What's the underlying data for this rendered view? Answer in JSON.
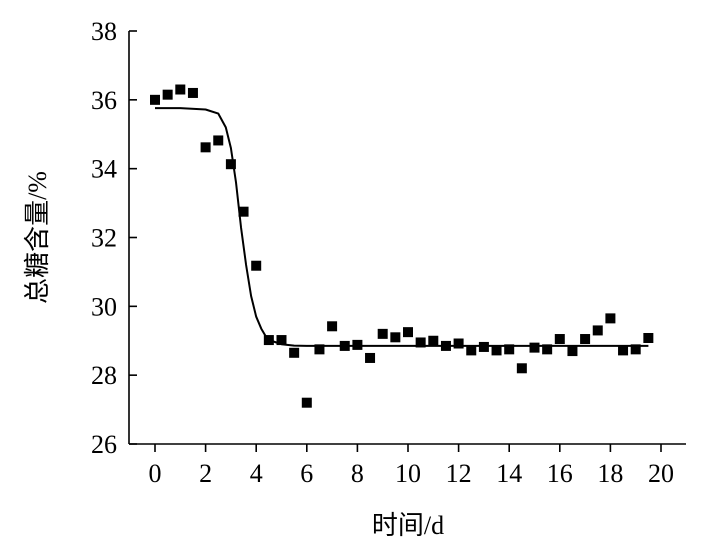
{
  "chart_data": {
    "type": "scatter",
    "xlabel": "时间/d",
    "ylabel": "总糖含量/%",
    "xlim": [
      -1,
      20
    ],
    "ylim": [
      26,
      38
    ],
    "xticks": [
      "0",
      "2",
      "4",
      "6",
      "8",
      "10",
      "12",
      "14",
      "16",
      "18",
      "20"
    ],
    "yticks": [
      "26",
      "28",
      "30",
      "32",
      "34",
      "36",
      "38"
    ],
    "grid": false,
    "series": [
      {
        "kind": "points",
        "marker": "square",
        "x": [
          0,
          0.5,
          1,
          1.5,
          2,
          2.5,
          3,
          3.5,
          4,
          4.5,
          5,
          5.5,
          6,
          6.5,
          7,
          7.5,
          8,
          8.5,
          9,
          9.5,
          10,
          10.5,
          11,
          11.5,
          12,
          12.5,
          13,
          13.5,
          14,
          14.5,
          15,
          15.5,
          16,
          16.5,
          17,
          17.5,
          18,
          18.5,
          19,
          19.5
        ],
        "y": [
          36.0,
          36.15,
          36.3,
          36.2,
          34.62,
          34.82,
          34.13,
          32.75,
          31.18,
          29.02,
          29.02,
          28.65,
          27.2,
          28.75,
          29.42,
          28.85,
          28.88,
          28.5,
          29.2,
          29.1,
          29.25,
          28.95,
          29.0,
          28.85,
          28.92,
          28.72,
          28.82,
          28.72,
          28.75,
          28.2,
          28.8,
          28.75,
          29.05,
          28.7,
          29.05,
          29.3,
          29.65,
          28.72,
          28.75,
          29.08
        ]
      },
      {
        "kind": "fitted-curve",
        "x": [
          0,
          1,
          2,
          2.5,
          2.8,
          3.0,
          3.2,
          3.4,
          3.6,
          3.8,
          4.0,
          4.2,
          4.4,
          4.6,
          4.8,
          5.0,
          5.5,
          6,
          7,
          8,
          10,
          12,
          14,
          16,
          18,
          19.5
        ],
        "y": [
          35.76,
          35.76,
          35.72,
          35.6,
          35.2,
          34.6,
          33.6,
          32.3,
          31.2,
          30.3,
          29.7,
          29.35,
          29.1,
          29.0,
          28.95,
          28.9,
          28.86,
          28.85,
          28.85,
          28.85,
          28.85,
          28.85,
          28.85,
          28.85,
          28.85,
          28.85
        ]
      }
    ]
  }
}
